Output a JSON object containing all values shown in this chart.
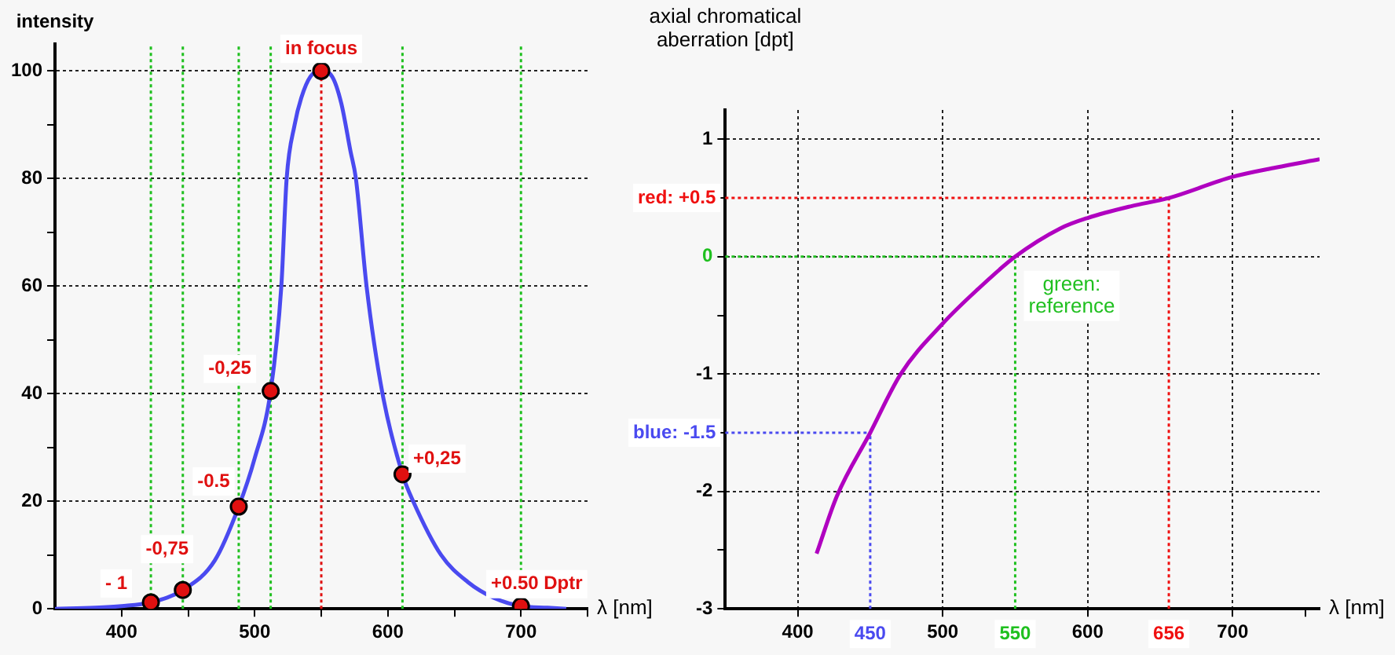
{
  "chart_data": [
    {
      "type": "line",
      "xlabel": "λ [nm]",
      "ylabel": "intensity",
      "xlim": [
        350,
        750
      ],
      "ylim": [
        0,
        105
      ],
      "xticks": [
        400,
        {
          "value": 450,
          "label": null
        },
        500,
        {
          "value": 550,
          "label": null
        },
        600,
        {
          "value": 650,
          "label": null
        },
        700,
        {
          "value": 750,
          "label": null
        }
      ],
      "yticks": [
        0,
        {
          "value": 10,
          "label": null
        },
        20,
        {
          "value": 30,
          "label": null
        },
        40,
        {
          "value": 50,
          "label": null
        },
        60,
        {
          "value": 70,
          "label": null
        },
        80,
        {
          "value": 90,
          "label": null
        },
        100
      ],
      "grid": "y",
      "legend": false,
      "series": [
        {
          "type": "line",
          "color": "#4a4af0",
          "marker": "none",
          "x": [
            350,
            380,
            400,
            422,
            446,
            470,
            488,
            500,
            512,
            520,
            524,
            530,
            535,
            542,
            550,
            558,
            565,
            572,
            576,
            584,
            596,
            611,
            619,
            640,
            660,
            680,
            700,
            720,
            734
          ],
          "values": [
            0,
            0.2,
            0.5,
            1.2,
            3.5,
            9,
            19,
            28,
            40.5,
            60,
            80,
            90,
            95,
            99,
            100,
            99,
            94,
            85,
            80,
            60,
            40,
            25,
            20,
            10,
            5,
            2,
            0.5,
            0.2,
            0
          ]
        },
        {
          "type": "scatter",
          "color": "#e01010",
          "marker": "circle",
          "x": [
            422,
            446,
            488,
            512,
            550,
            611,
            700
          ],
          "values": [
            1.2,
            3.5,
            19,
            40.5,
            100,
            25,
            0.5
          ]
        }
      ],
      "ref_lines": [
        {
          "axis": "x",
          "value": 422,
          "color": "#20c020",
          "line_style": "dotted"
        },
        {
          "axis": "x",
          "value": 446,
          "color": "#20c020",
          "line_style": "dotted"
        },
        {
          "axis": "x",
          "value": 488,
          "color": "#20c020",
          "line_style": "dotted"
        },
        {
          "axis": "x",
          "value": 512,
          "color": "#20c020",
          "line_style": "dotted"
        },
        {
          "axis": "x",
          "value": 550,
          "color": "#e01010",
          "line_style": "dotted"
        },
        {
          "axis": "x",
          "value": 611,
          "color": "#20c020",
          "line_style": "dotted"
        },
        {
          "axis": "x",
          "value": 700,
          "color": "#20c020",
          "line_style": "dotted"
        }
      ],
      "annotations": [
        {
          "text": "- 1",
          "x": 422,
          "y": 1.2
        },
        {
          "text": "-0,75",
          "x": 446,
          "y": 3.5
        },
        {
          "text": "-0.5",
          "x": 488,
          "y": 19
        },
        {
          "text": "-0,25",
          "x": 512,
          "y": 40.5
        },
        {
          "text": "in focus",
          "x": 550,
          "y": 100
        },
        {
          "text": "+0,25",
          "x": 611,
          "y": 25
        },
        {
          "text": "+0.50 Dptr",
          "x": 700,
          "y": 0.5
        }
      ]
    },
    {
      "type": "line",
      "xlabel": "λ [nm]",
      "ylabel": "axial chromatical aberration [dpt]",
      "xlim": [
        350,
        760
      ],
      "ylim": [
        -3,
        1.25
      ],
      "xticks": [
        400,
        500,
        600,
        700,
        {
          "value": 750,
          "label": null
        }
      ],
      "yticks": [
        -3,
        {
          "value": -2.5,
          "label": null
        },
        -2,
        {
          "value": -1.5,
          "label": null
        },
        -1,
        {
          "value": -0.5,
          "label": null
        },
        0,
        {
          "value": 0.5,
          "label": null
        },
        1
      ],
      "grid": true,
      "legend": false,
      "series": [
        {
          "type": "line",
          "color": "#b000c0",
          "marker": "none",
          "x": [
            413,
            427,
            450,
            471,
            500,
            524,
            550,
            581,
            600,
            630,
            656,
            700,
            730,
            760
          ],
          "values": [
            -2.53,
            -2.04,
            -1.5,
            -1,
            -0.57,
            -0.28,
            0,
            0.24,
            0.33,
            0.43,
            0.5,
            0.68,
            0.76,
            0.83
          ]
        }
      ],
      "ref_lines": [
        {
          "axis": "x",
          "value": 450,
          "label": "450",
          "color": "#4a4af0",
          "line_style": "dotted"
        },
        {
          "axis": "y",
          "value": -1.5,
          "label": "blue: -1.5",
          "color": "#4a4af0",
          "line_style": "dotted"
        },
        {
          "axis": "x",
          "value": 550,
          "label": "550",
          "color": "#20c020",
          "line_style": "dotted"
        },
        {
          "axis": "y",
          "value": 0,
          "label": null,
          "color": "#20c020",
          "line_style": "dotted"
        },
        {
          "axis": "x",
          "value": 656,
          "label": "656",
          "color": "#f01010",
          "line_style": "dotted"
        },
        {
          "axis": "y",
          "value": 0.5,
          "label": "red: +0.5",
          "color": "#f01010",
          "line_style": "dotted"
        }
      ],
      "annotations": [
        {
          "text": "green: reference",
          "x": 550,
          "y": 0
        }
      ]
    }
  ]
}
